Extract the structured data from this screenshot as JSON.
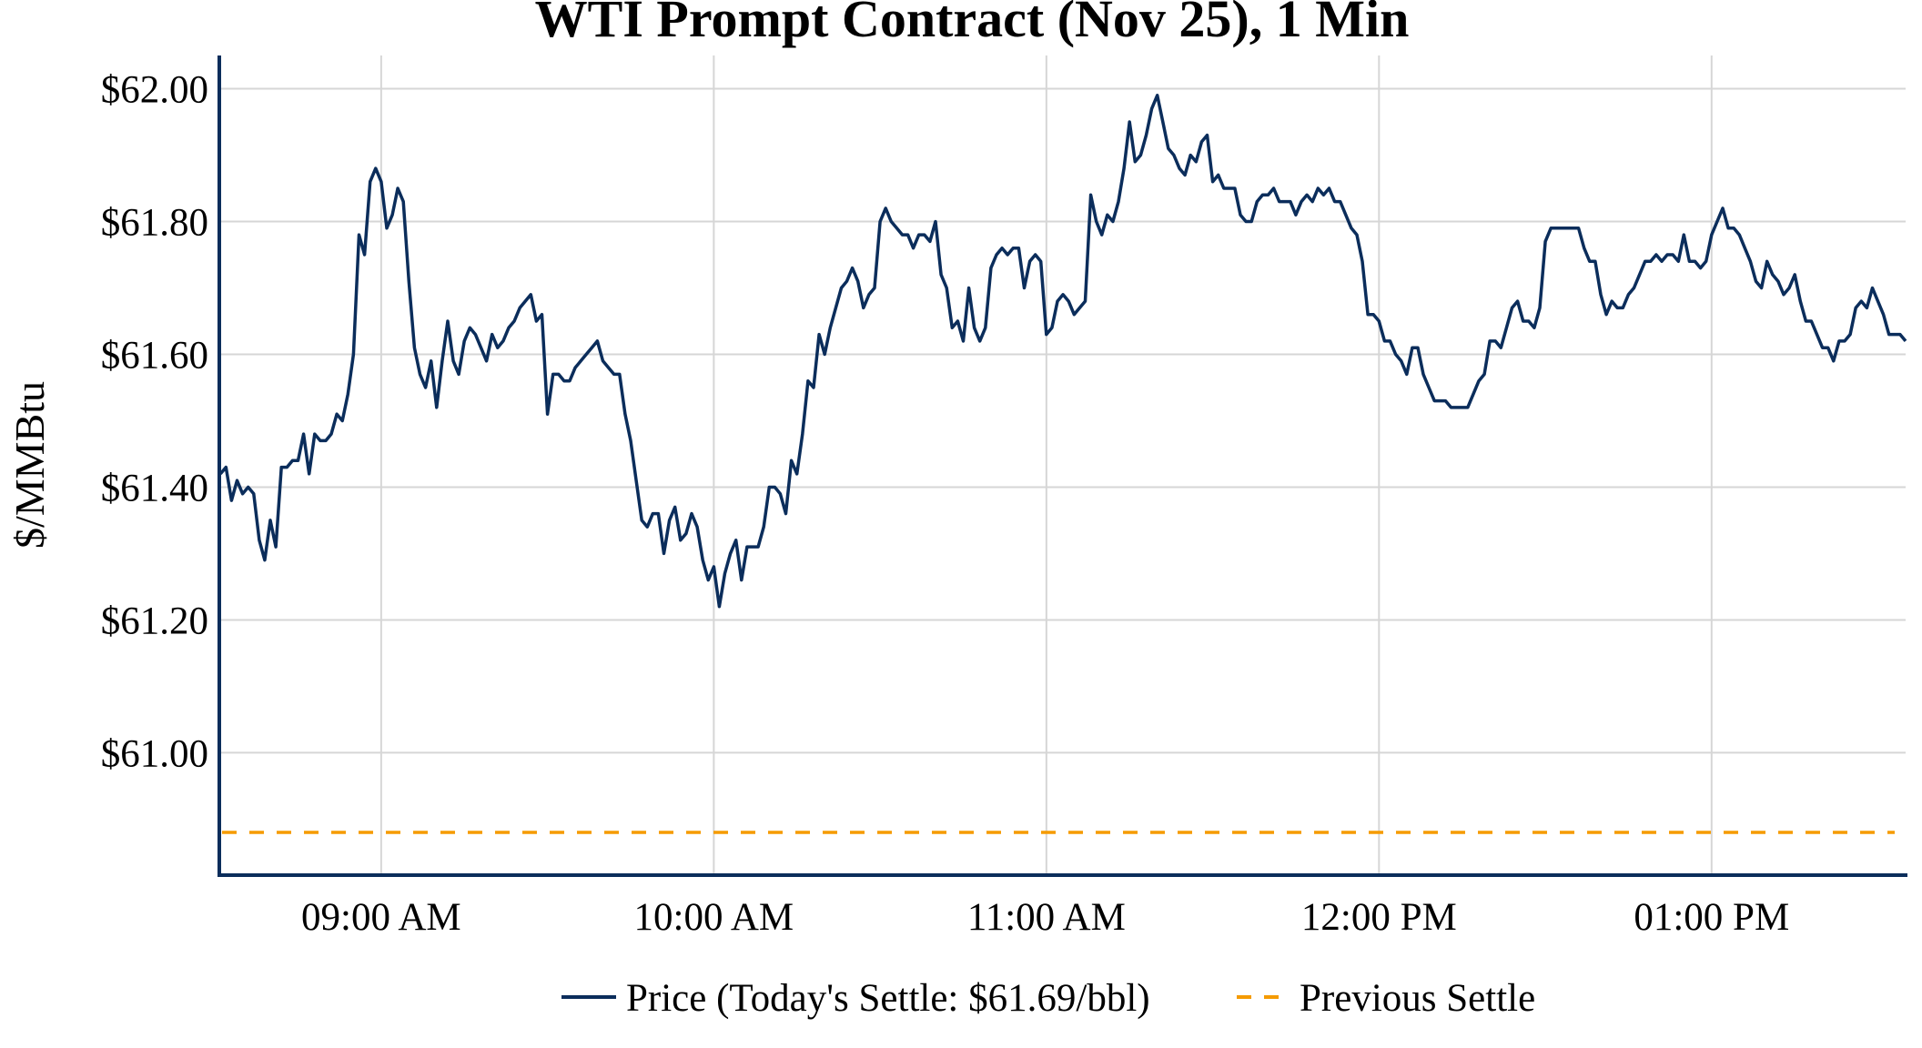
{
  "chart_data": {
    "type": "line",
    "title": "WTI Prompt Contract (Nov 25), 1 Min",
    "xlabel": "",
    "ylabel": "$/MMBtu",
    "ylim": [
      60.817,
      62.05
    ],
    "xlim": [
      "08:30.8",
      "13:35"
    ],
    "grid": true,
    "legend_position": "bottom-center",
    "y_ticks": [
      61.0,
      61.2,
      61.4,
      61.6,
      61.8,
      62.0
    ],
    "y_tick_labels": [
      "$61.00",
      "$61.20",
      "$61.40",
      "$61.60",
      "$61.80",
      "$62.00"
    ],
    "x_ticks": [
      "09:00",
      "10:00",
      "11:00",
      "12:00",
      "13:00"
    ],
    "x_tick_labels": [
      "09:00 AM",
      "10:00 AM",
      "11:00 AM",
      "12:00 PM",
      "01:00 PM"
    ],
    "series": [
      {
        "name": "Price (Today's Settle: $61.69/bbl)",
        "color": "#0b2d5b",
        "style": "solid",
        "start_time": "08:31",
        "interval_minutes": 1,
        "values": [
          61.42,
          61.43,
          61.38,
          61.41,
          61.39,
          61.4,
          61.39,
          61.32,
          61.29,
          61.35,
          61.31,
          61.43,
          61.43,
          61.44,
          61.44,
          61.48,
          61.42,
          61.48,
          61.47,
          61.47,
          61.48,
          61.51,
          61.5,
          61.54,
          61.6,
          61.78,
          61.75,
          61.86,
          61.88,
          61.86,
          61.79,
          61.81,
          61.85,
          61.83,
          61.71,
          61.61,
          61.57,
          61.55,
          61.59,
          61.52,
          61.59,
          61.65,
          61.59,
          61.57,
          61.62,
          61.64,
          61.63,
          61.61,
          61.59,
          61.63,
          61.61,
          61.62,
          61.64,
          61.65,
          61.67,
          61.68,
          61.69,
          61.65,
          61.66,
          61.51,
          61.57,
          61.57,
          61.56,
          61.56,
          61.58,
          61.59,
          61.6,
          61.61,
          61.62,
          61.59,
          61.58,
          61.57,
          61.57,
          61.51,
          61.47,
          61.41,
          61.35,
          61.34,
          61.36,
          61.36,
          61.3,
          61.35,
          61.37,
          61.32,
          61.33,
          61.36,
          61.34,
          61.29,
          61.26,
          61.28,
          61.22,
          61.27,
          61.3,
          61.32,
          61.26,
          61.31,
          61.31,
          61.31,
          61.34,
          61.4,
          61.4,
          61.39,
          61.36,
          61.44,
          61.42,
          61.48,
          61.56,
          61.55,
          61.63,
          61.6,
          61.64,
          61.67,
          61.7,
          61.71,
          61.73,
          61.71,
          61.67,
          61.69,
          61.7,
          61.8,
          61.82,
          61.8,
          61.79,
          61.78,
          61.78,
          61.76,
          61.78,
          61.78,
          61.77,
          61.8,
          61.72,
          61.7,
          61.64,
          61.65,
          61.62,
          61.7,
          61.64,
          61.62,
          61.64,
          61.73,
          61.75,
          61.76,
          61.75,
          61.76,
          61.76,
          61.7,
          61.74,
          61.75,
          61.74,
          61.63,
          61.64,
          61.68,
          61.69,
          61.68,
          61.66,
          61.67,
          61.68,
          61.84,
          61.8,
          61.78,
          61.81,
          61.8,
          61.83,
          61.88,
          61.95,
          61.89,
          61.9,
          61.93,
          61.97,
          61.99,
          61.95,
          61.91,
          61.9,
          61.88,
          61.87,
          61.9,
          61.89,
          61.92,
          61.93,
          61.86,
          61.87,
          61.85,
          61.85,
          61.85,
          61.81,
          61.8,
          61.8,
          61.83,
          61.84,
          61.84,
          61.85,
          61.83,
          61.83,
          61.83,
          61.81,
          61.83,
          61.84,
          61.83,
          61.85,
          61.84,
          61.85,
          61.83,
          61.83,
          61.81,
          61.79,
          61.78,
          61.74,
          61.66,
          61.66,
          61.65,
          61.62,
          61.62,
          61.6,
          61.59,
          61.57,
          61.61,
          61.61,
          61.57,
          61.55,
          61.53,
          61.53,
          61.53,
          61.52,
          61.52,
          61.52,
          61.52,
          61.54,
          61.56,
          61.57,
          61.62,
          61.62,
          61.61,
          61.64,
          61.67,
          61.68,
          61.65,
          61.65,
          61.64,
          61.67,
          61.77,
          61.79,
          61.79,
          61.79,
          61.79,
          61.79,
          61.79,
          61.76,
          61.74,
          61.74,
          61.69,
          61.66,
          61.68,
          61.67,
          61.67,
          61.69,
          61.7,
          61.72,
          61.74,
          61.74,
          61.75,
          61.74,
          61.75,
          61.75,
          61.74,
          61.78,
          61.74,
          61.74,
          61.73,
          61.74,
          61.78,
          61.8,
          61.82,
          61.79,
          61.79,
          61.78,
          61.76,
          61.74,
          61.71,
          61.7,
          61.74,
          61.72,
          61.71,
          61.69,
          61.7,
          61.72,
          61.68,
          61.65,
          61.65,
          61.63,
          61.61,
          61.61,
          61.59,
          61.62,
          61.62,
          61.63,
          61.67,
          61.68,
          61.67,
          61.7,
          61.68,
          61.66,
          61.63,
          61.63,
          61.63,
          61.62
        ]
      },
      {
        "name": "Previous Settle",
        "color": "#f59b00",
        "style": "dashed",
        "value": 60.88
      }
    ]
  }
}
